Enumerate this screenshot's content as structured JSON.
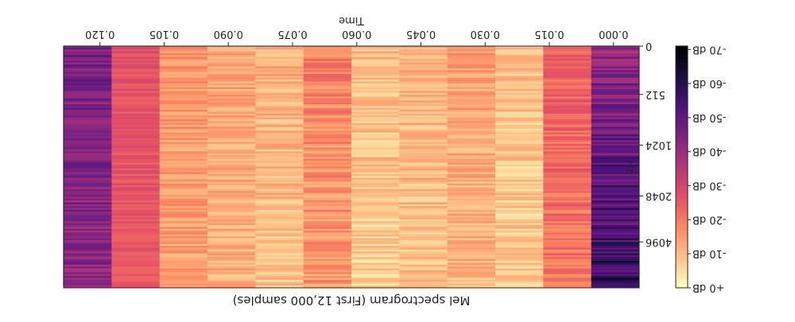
{
  "chart_data": {
    "type": "heatmap",
    "title": "Mel spectrogram (First 12,000 samples)",
    "xlabel": "Time",
    "ylabel": "Hz",
    "x_tick_labels": [
      "0.000",
      "0.015",
      "0.030",
      "0.045",
      "0.060",
      "0.075",
      "0.090",
      "0.105",
      "0.120"
    ],
    "x_tick_values": [
      0.0,
      0.015,
      0.03,
      0.045,
      0.06,
      0.075,
      0.09,
      0.105,
      0.12
    ],
    "xlim": [
      -0.006,
      0.1285
    ],
    "y_tick_labels": [
      "0",
      "512",
      "1024",
      "2048",
      "4096"
    ],
    "y_tick_fractions": [
      0.0,
      0.2,
      0.41,
      0.62,
      0.81
    ],
    "colorbar": {
      "tick_labels": [
        "-70 dB",
        "-60 dB",
        "-50 dB",
        "-40 dB",
        "-30 dB",
        "-20 dB",
        "-10 dB",
        "+0 dB"
      ],
      "tick_values": [
        -70,
        -60,
        -50,
        -40,
        -30,
        -20,
        -10,
        0
      ],
      "range": [
        -71,
        0
      ],
      "colormap": "magma"
    },
    "n_frames": 12,
    "n_mels": 128,
    "frame_mean_db": [
      -50,
      -22,
      -8,
      -12,
      -10,
      -8,
      -16,
      -10,
      -12,
      -14,
      -26,
      -44
    ],
    "frame_band_amplitude_db": [
      8,
      5,
      5,
      5,
      5,
      5,
      6,
      5,
      5,
      5,
      3,
      6
    ],
    "frame_trend_db": [
      -16,
      4,
      2,
      4,
      2,
      4,
      4,
      4,
      2,
      2,
      2,
      4
    ],
    "orientation": "rotated 180 degrees"
  }
}
